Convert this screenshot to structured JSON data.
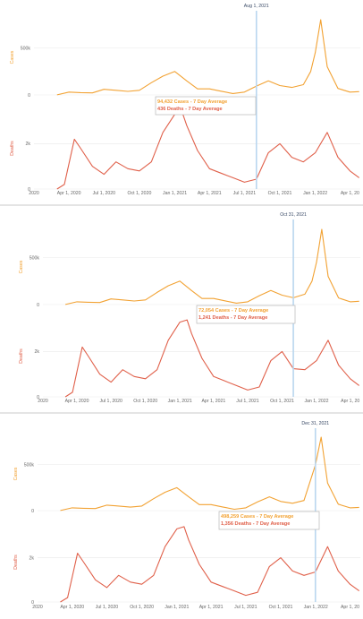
{
  "colors": {
    "cases": "#f2a233",
    "deaths": "#e0604a",
    "marker": "#b9d6ef",
    "grid": "#e9e9e9",
    "divider": "#dcdcdc",
    "tooltip_border": "#b8b8b8"
  },
  "chart_data": [
    {
      "type": "line",
      "date_marker": "Aug 1, 2021",
      "tooltip": {
        "cases": "94,432 Cases - 7 Day Average",
        "deaths": "436 Deaths - 7 Day Average"
      },
      "panels": [
        {
          "ylabel": "Cases",
          "yticks": [
            "500k",
            "0"
          ],
          "ylim": [
            0,
            800000
          ]
        },
        {
          "ylabel": "Deaths",
          "yticks": [
            "2k",
            "0"
          ],
          "ylim": [
            0,
            3600
          ]
        }
      ],
      "xticks": [
        "2020",
        "Apr 1, 2020",
        "Jul 1, 2020",
        "Oct 1, 2020",
        "Jan 1, 2021",
        "Apr 1, 2021",
        "Jul 1, 2021",
        "Oct 1, 2021",
        "Jan 1, 2022",
        "Apr 1, 20"
      ],
      "series": [
        {
          "name": "Cases",
          "x": [
            "2020-03-01",
            "2020-04-01",
            "2020-05-01",
            "2020-06-01",
            "2020-07-01",
            "2020-08-01",
            "2020-09-01",
            "2020-10-01",
            "2020-11-01",
            "2020-12-01",
            "2021-01-01",
            "2021-02-01",
            "2021-03-01",
            "2021-04-01",
            "2021-05-01",
            "2021-06-01",
            "2021-07-01",
            "2021-08-01",
            "2021-09-01",
            "2021-10-01",
            "2021-11-01",
            "2021-12-01",
            "2021-12-20",
            "2022-01-01",
            "2022-01-15",
            "2022-02-01",
            "2022-03-01",
            "2022-04-01",
            "2022-04-25"
          ],
          "values": [
            1000,
            30000,
            25000,
            22000,
            60000,
            50000,
            38000,
            50000,
            130000,
            200000,
            250000,
            150000,
            65000,
            65000,
            40000,
            15000,
            30000,
            94432,
            150000,
            100000,
            80000,
            110000,
            250000,
            450000,
            800000,
            300000,
            70000,
            30000,
            35000
          ]
        },
        {
          "name": "Deaths",
          "x": [
            "2020-03-01",
            "2020-03-20",
            "2020-04-15",
            "2020-05-01",
            "2020-06-01",
            "2020-07-01",
            "2020-08-01",
            "2020-09-01",
            "2020-10-01",
            "2020-11-01",
            "2020-12-01",
            "2021-01-01",
            "2021-01-20",
            "2021-02-01",
            "2021-03-01",
            "2021-04-01",
            "2021-05-01",
            "2021-06-01",
            "2021-07-01",
            "2021-08-01",
            "2021-09-01",
            "2021-10-01",
            "2021-11-01",
            "2021-12-01",
            "2022-01-01",
            "2022-02-01",
            "2022-03-01",
            "2022-04-01",
            "2022-04-25"
          ],
          "values": [
            0,
            200,
            2200,
            1800,
            1000,
            650,
            1200,
            900,
            800,
            1200,
            2500,
            3300,
            3400,
            2800,
            1700,
            900,
            700,
            500,
            300,
            436,
            1600,
            2000,
            1400,
            1200,
            1600,
            2500,
            1400,
            800,
            500
          ]
        }
      ]
    },
    {
      "type": "line",
      "date_marker": "Oct 31, 2021",
      "tooltip": {
        "cases": "72,054 Cases - 7 Day Average",
        "deaths": "1,241 Deaths - 7 Day Average"
      },
      "panels": [
        {
          "ylabel": "Cases",
          "yticks": [
            "500k",
            "0"
          ],
          "ylim": [
            0,
            800000
          ]
        },
        {
          "ylabel": "Deaths",
          "yticks": [
            "2k",
            "0"
          ],
          "ylim": [
            0,
            3600
          ]
        }
      ],
      "xticks": [
        "2020",
        "Apr 1, 2020",
        "Jul 1, 2020",
        "Oct 1, 2020",
        "Jan 1, 2021",
        "Apr 1, 2021",
        "Jul 1, 2021",
        "Oct 1, 2021",
        "Jan 1, 2022",
        "Apr 1, 20"
      ],
      "series": [
        {
          "name": "Cases",
          "x": [
            "2020-03-01",
            "2020-04-01",
            "2020-05-01",
            "2020-06-01",
            "2020-07-01",
            "2020-08-01",
            "2020-09-01",
            "2020-10-01",
            "2020-11-01",
            "2020-12-01",
            "2021-01-01",
            "2021-02-01",
            "2021-03-01",
            "2021-04-01",
            "2021-05-01",
            "2021-06-01",
            "2021-07-01",
            "2021-08-01",
            "2021-09-01",
            "2021-10-01",
            "2021-10-31",
            "2021-12-01",
            "2021-12-20",
            "2022-01-01",
            "2022-01-15",
            "2022-02-01",
            "2022-03-01",
            "2022-04-01",
            "2022-04-25"
          ],
          "values": [
            1000,
            30000,
            25000,
            22000,
            60000,
            50000,
            38000,
            50000,
            130000,
            200000,
            250000,
            150000,
            65000,
            65000,
            40000,
            15000,
            30000,
            94432,
            150000,
            100000,
            72054,
            110000,
            250000,
            450000,
            800000,
            300000,
            70000,
            30000,
            35000
          ]
        },
        {
          "name": "Deaths",
          "x": [
            "2020-03-01",
            "2020-03-20",
            "2020-04-15",
            "2020-05-01",
            "2020-06-01",
            "2020-07-01",
            "2020-08-01",
            "2020-09-01",
            "2020-10-01",
            "2020-11-01",
            "2020-12-01",
            "2021-01-01",
            "2021-01-20",
            "2021-02-01",
            "2021-03-01",
            "2021-04-01",
            "2021-05-01",
            "2021-06-01",
            "2021-07-01",
            "2021-08-01",
            "2021-09-01",
            "2021-10-01",
            "2021-10-31",
            "2021-12-01",
            "2022-01-01",
            "2022-02-01",
            "2022-03-01",
            "2022-04-01",
            "2022-04-25"
          ],
          "values": [
            0,
            200,
            2200,
            1800,
            1000,
            650,
            1200,
            900,
            800,
            1200,
            2500,
            3300,
            3400,
            2800,
            1700,
            900,
            700,
            500,
            300,
            436,
            1600,
            2000,
            1241,
            1200,
            1600,
            2500,
            1400,
            800,
            500
          ]
        }
      ]
    },
    {
      "type": "line",
      "date_marker": "Dec 31, 2021",
      "tooltip": {
        "cases": "498,259 Cases - 7 Day Average",
        "deaths": "1,356 Deaths - 7 Day Average"
      },
      "panels": [
        {
          "ylabel": "Cases",
          "yticks": [
            "500k",
            "0"
          ],
          "ylim": [
            0,
            800000
          ]
        },
        {
          "ylabel": "Deaths",
          "yticks": [
            "2k",
            "0"
          ],
          "ylim": [
            0,
            3600
          ]
        }
      ],
      "xticks": [
        "2020",
        "Apr 1, 2020",
        "Jul 1, 2020",
        "Oct 1, 2020",
        "Jan 1, 2021",
        "Apr 1, 2021",
        "Jul 1, 2021",
        "Oct 1, 2021",
        "Jan 1, 2022",
        "Apr 1, 20"
      ],
      "series": [
        {
          "name": "Cases",
          "x": [
            "2020-03-01",
            "2020-04-01",
            "2020-05-01",
            "2020-06-01",
            "2020-07-01",
            "2020-08-01",
            "2020-09-01",
            "2020-10-01",
            "2020-11-01",
            "2020-12-01",
            "2021-01-01",
            "2021-02-01",
            "2021-03-01",
            "2021-04-01",
            "2021-05-01",
            "2021-06-01",
            "2021-07-01",
            "2021-08-01",
            "2021-09-01",
            "2021-10-01",
            "2021-11-01",
            "2021-12-01",
            "2021-12-31",
            "2022-01-15",
            "2022-02-01",
            "2022-03-01",
            "2022-04-01",
            "2022-04-25"
          ],
          "values": [
            1000,
            30000,
            25000,
            22000,
            60000,
            50000,
            38000,
            50000,
            130000,
            200000,
            250000,
            150000,
            65000,
            65000,
            40000,
            15000,
            30000,
            94432,
            150000,
            100000,
            80000,
            110000,
            498259,
            800000,
            300000,
            70000,
            30000,
            35000
          ]
        },
        {
          "name": "Deaths",
          "x": [
            "2020-03-01",
            "2020-03-20",
            "2020-04-15",
            "2020-05-01",
            "2020-06-01",
            "2020-07-01",
            "2020-08-01",
            "2020-09-01",
            "2020-10-01",
            "2020-11-01",
            "2020-12-01",
            "2021-01-01",
            "2021-01-20",
            "2021-02-01",
            "2021-03-01",
            "2021-04-01",
            "2021-05-01",
            "2021-06-01",
            "2021-07-01",
            "2021-08-01",
            "2021-09-01",
            "2021-10-01",
            "2021-11-01",
            "2021-12-01",
            "2021-12-31",
            "2022-02-01",
            "2022-03-01",
            "2022-04-01",
            "2022-04-25"
          ],
          "values": [
            0,
            200,
            2200,
            1800,
            1000,
            650,
            1200,
            900,
            800,
            1200,
            2500,
            3300,
            3400,
            2800,
            1700,
            900,
            700,
            500,
            300,
            436,
            1600,
            2000,
            1400,
            1200,
            1356,
            2500,
            1400,
            800,
            500
          ]
        }
      ]
    }
  ]
}
